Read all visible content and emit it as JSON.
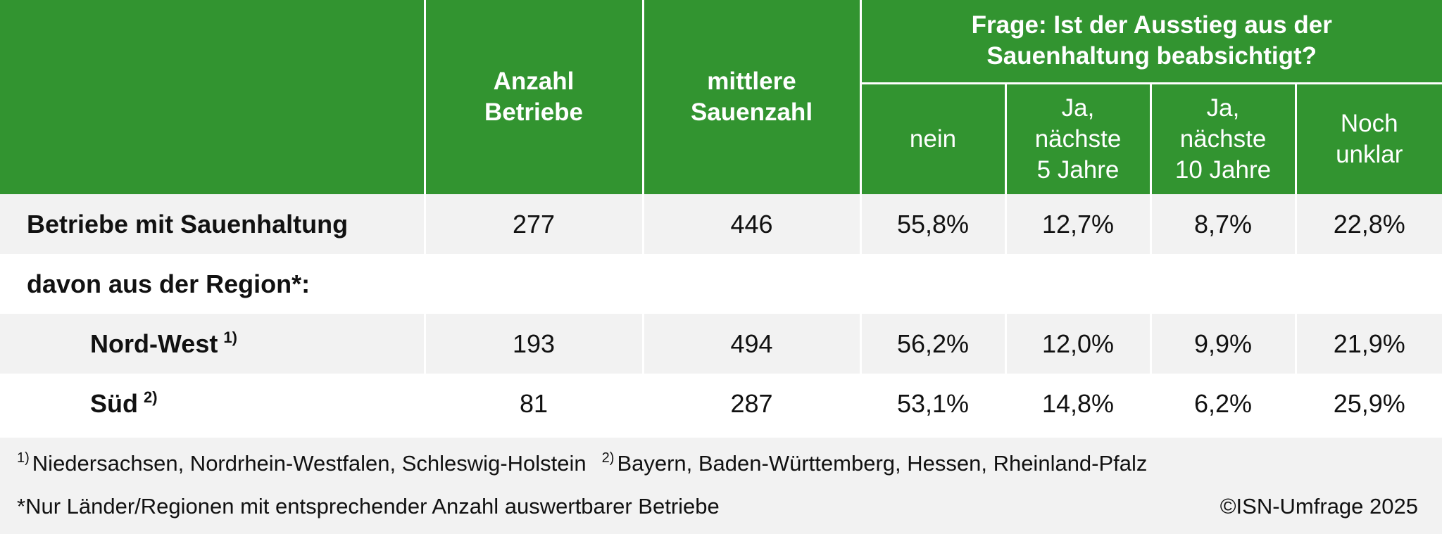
{
  "chart_data": {
    "type": "table",
    "headers": {
      "count": "Anzahl Betriebe",
      "count_lines": [
        "Anzahl",
        "Betriebe"
      ],
      "avg": "mittlere Sauenzahl",
      "avg_lines": [
        "mittlere",
        "Sauenzahl"
      ],
      "question": "Frage: Ist der Ausstieg aus der Sauenhaltung beabsichtigt?",
      "question_lines": [
        "Frage: Ist der Ausstieg aus der",
        "Sauenhaltung beabsichtigt?"
      ],
      "answers": [
        {
          "label": "nein",
          "lines": [
            "nein"
          ]
        },
        {
          "label": "Ja, nächste 5 Jahre",
          "lines": [
            "Ja,",
            "nächste",
            "5 Jahre"
          ]
        },
        {
          "label": "Ja, nächste 10 Jahre",
          "lines": [
            "Ja,",
            "nächste",
            "10 Jahre"
          ]
        },
        {
          "label": "Noch unklar",
          "lines": [
            "Noch",
            "unklar"
          ]
        }
      ]
    },
    "rows": [
      {
        "label": "Betriebe mit Sauenhaltung",
        "footnote": "",
        "count": "277",
        "avg": "446",
        "values": [
          "55,8%",
          "12,7%",
          "8,7%",
          "22,8%"
        ]
      },
      {
        "label": "davon aus der Region*:",
        "footnote": "",
        "count": "",
        "avg": "",
        "values": [
          "",
          "",
          "",
          ""
        ]
      },
      {
        "label": "Nord-West",
        "footnote": "1)",
        "count": "193",
        "avg": "494",
        "values": [
          "56,2%",
          "12,0%",
          "9,9%",
          "21,9%"
        ]
      },
      {
        "label": "Süd",
        "footnote": "2)",
        "count": "81",
        "avg": "287",
        "values": [
          "53,1%",
          "14,8%",
          "6,2%",
          "25,9%"
        ]
      }
    ]
  },
  "footer": {
    "fn1_mark": "1)",
    "fn1_text": "Niedersachsen, Nordrhein-Westfalen, Schleswig-Holstein",
    "fn2_mark": "2)",
    "fn2_text": "Bayern, Baden-Württemberg, Hessen, Rheinland-Pfalz",
    "region_note": "*Nur Länder/Regionen mit entsprechender Anzahl auswertbarer Betriebe",
    "copyright": "©ISN-Umfrage 2025"
  },
  "colors": {
    "header_green": "#329430",
    "row_shade": "#f2f2f2",
    "header_text": "#ffffff"
  }
}
